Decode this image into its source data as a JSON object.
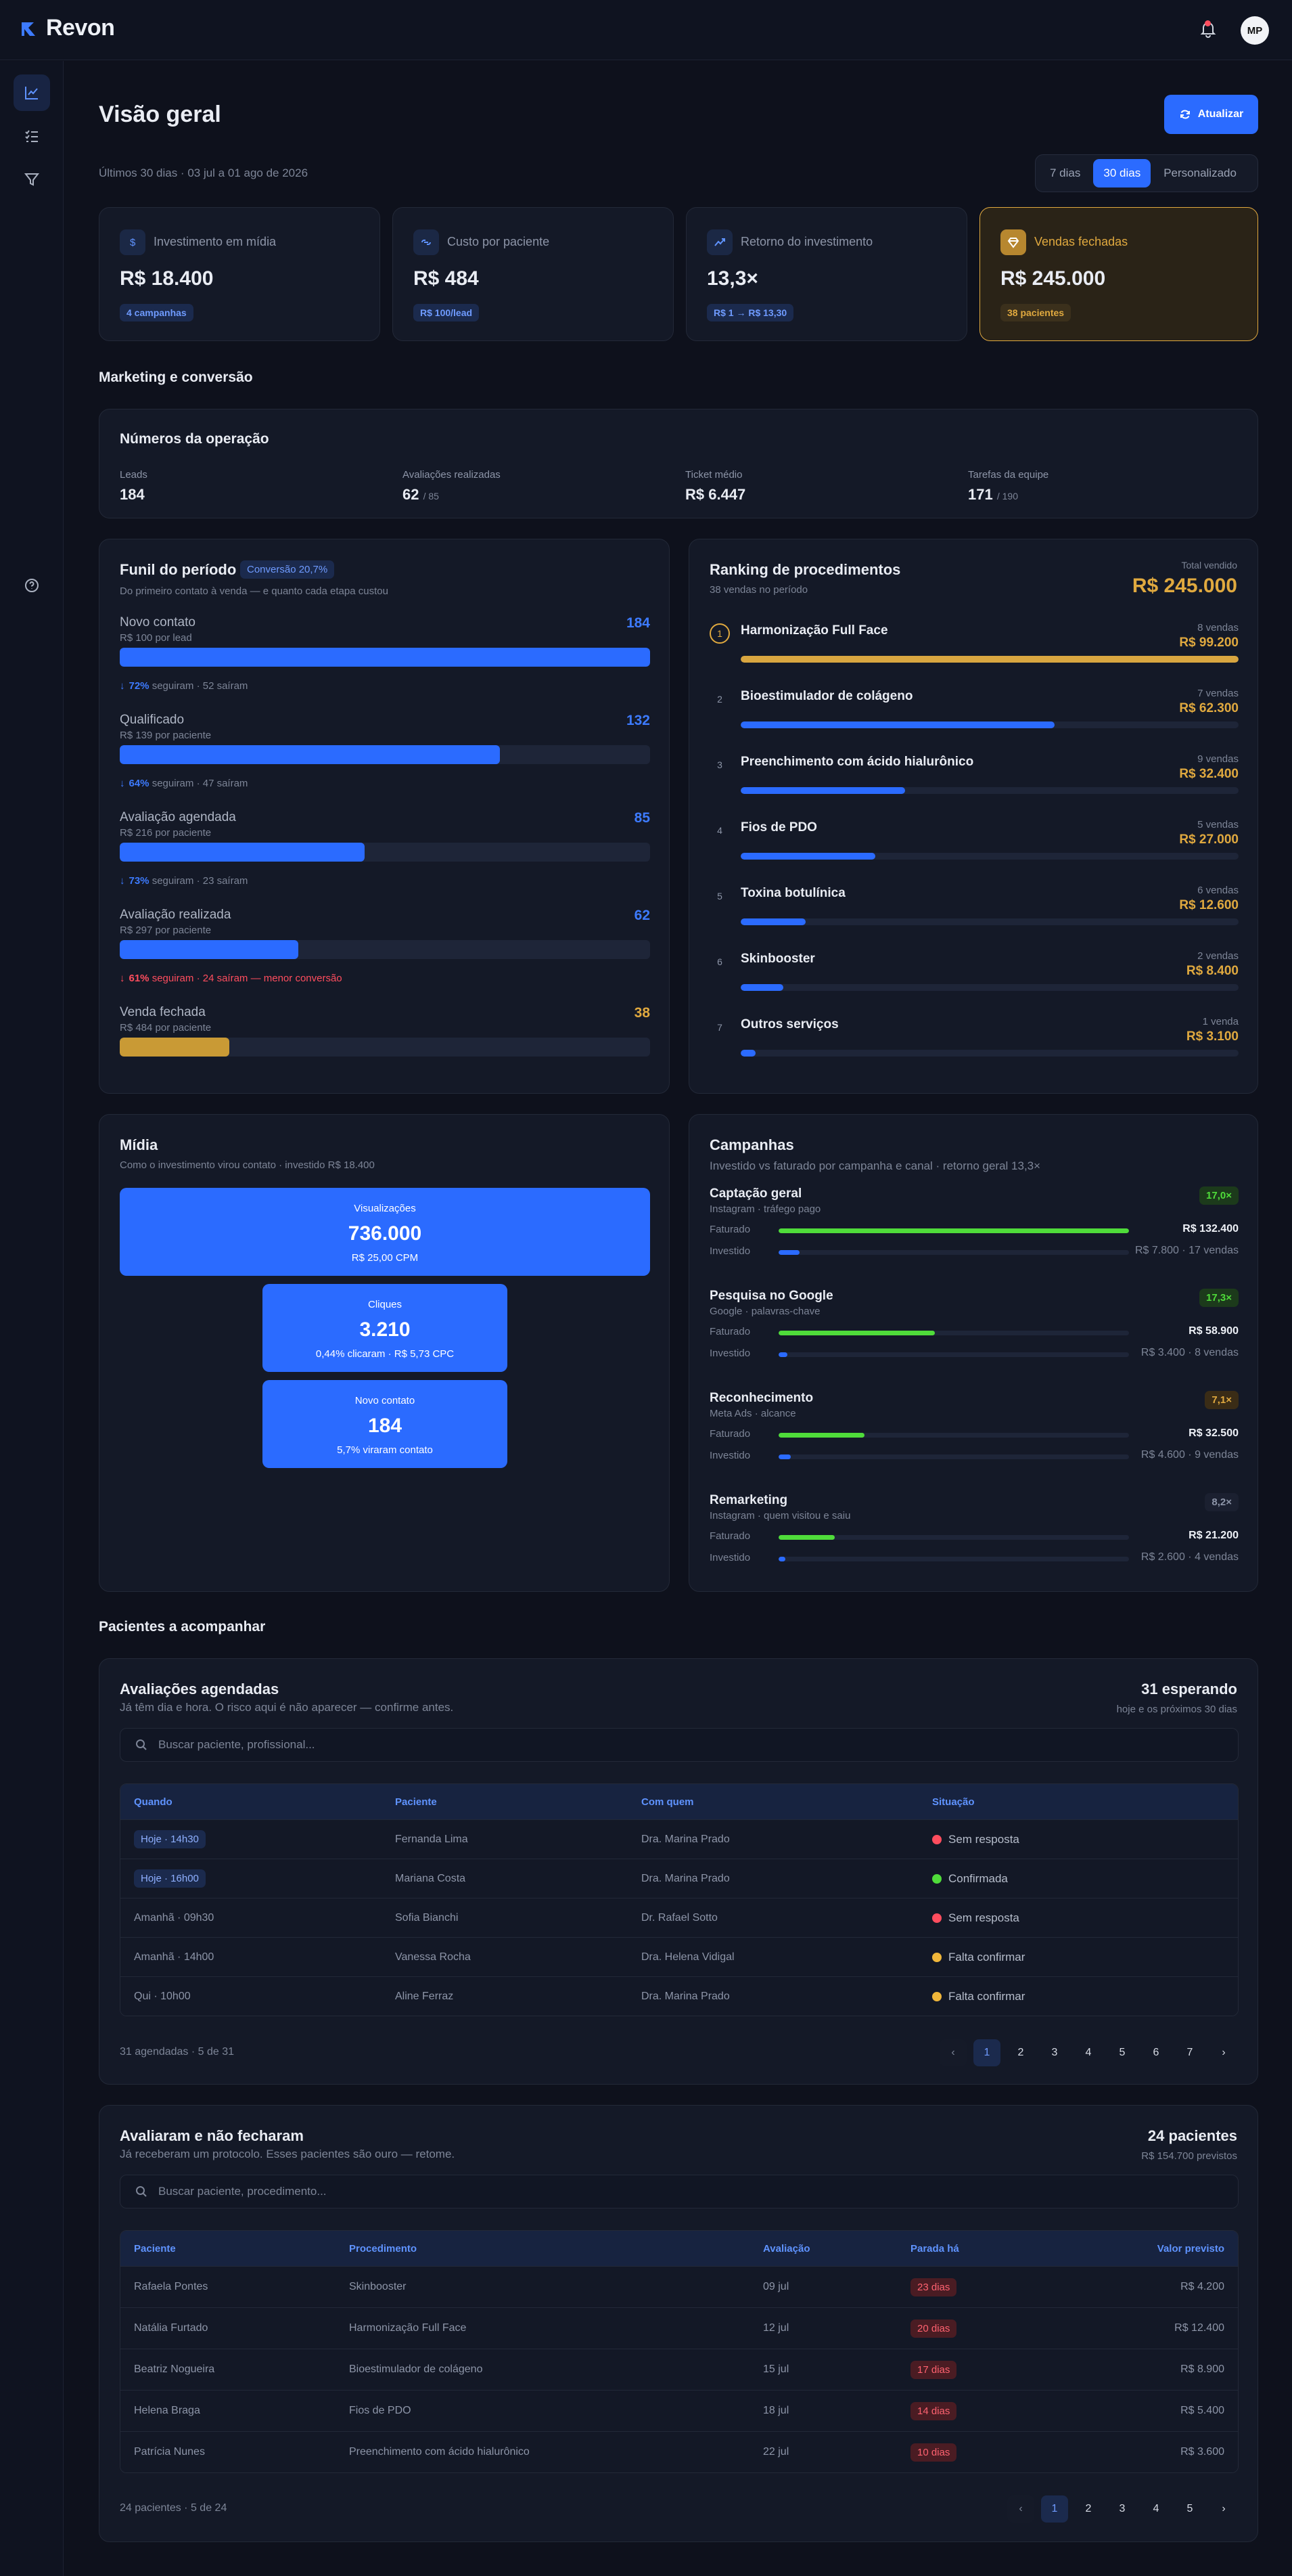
{
  "app": {
    "name": "Revon",
    "avatar": "MP"
  },
  "header": {
    "title": "Visão geral",
    "refresh_label": "Atualizar",
    "range_text": "Últimos 30 dias · 03 jul a 01 ago de 2026",
    "ranges": [
      "7 dias",
      "30 dias",
      "Personalizado"
    ]
  },
  "kpis": [
    {
      "label": "Investimento em mídia",
      "value": "R$ 18.400",
      "badge": "4 campanhas",
      "icon": "dollar-icon"
    },
    {
      "label": "Custo por paciente",
      "value": "R$ 484",
      "badge": "R$ 100/lead",
      "icon": "link-icon"
    },
    {
      "label": "Retorno do investimento",
      "value": "13,3×",
      "badge": "R$ 1 → R$ 13,30",
      "icon": "trend-icon"
    },
    {
      "label": "Vendas fechadas",
      "value": "R$ 245.000",
      "badge": "38 pacientes",
      "icon": "gem-icon"
    }
  ],
  "sections": {
    "marketing": "Marketing e conversão",
    "patients": "Pacientes a acompanhar"
  },
  "operation": {
    "title": "Números da operação",
    "items": [
      {
        "label": "Leads",
        "value": "184",
        "suffix": ""
      },
      {
        "label": "Avaliações realizadas",
        "value": "62",
        "suffix": "/ 85"
      },
      {
        "label": "Ticket médio",
        "value": "R$ 6.447",
        "suffix": ""
      },
      {
        "label": "Tarefas da equipe",
        "value": "171",
        "suffix": "/ 190"
      }
    ]
  },
  "funnel": {
    "title": "Funil do período",
    "badge": "Conversão 20,7%",
    "subtitle": "Do primeiro contato à venda — e quanto cada etapa custou",
    "stages": [
      {
        "name": "Novo contato",
        "cost": "R$ 100 por lead",
        "count": "184",
        "fill": 1.0
      },
      {
        "name": "Qualificado",
        "cost": "R$ 139 por paciente",
        "count": "132",
        "fill": 0.717
      },
      {
        "name": "Avaliação agendada",
        "cost": "R$ 216 por paciente",
        "count": "85",
        "fill": 0.462
      },
      {
        "name": "Avaliação realizada",
        "cost": "R$ 297 por paciente",
        "count": "62",
        "fill": 0.337
      },
      {
        "name": "Venda fechada",
        "cost": "R$ 484 por paciente",
        "count": "38",
        "fill": 0.207
      }
    ],
    "notes": [
      {
        "pct": "72%",
        "text": "seguiram · 52 saíram"
      },
      {
        "pct": "64%",
        "text": "seguiram · 47 saíram"
      },
      {
        "pct": "73%",
        "text": "seguiram · 23 saíram"
      },
      {
        "pct": "61%",
        "text": "seguiram · 24 saíram — menor conversão"
      }
    ]
  },
  "ranking": {
    "title": "Ranking de procedimentos",
    "subtitle": "38 vendas no período",
    "total_label": "Total vendido",
    "total": "R$ 245.000",
    "items": [
      {
        "rank": "1",
        "name": "Harmonização Full Face",
        "sales": "8 vendas",
        "amount": "R$ 99.200",
        "fill": 1.0
      },
      {
        "rank": "2",
        "name": "Bioestimulador de colágeno",
        "sales": "7 vendas",
        "amount": "R$ 62.300",
        "fill": 0.63
      },
      {
        "rank": "3",
        "name": "Preenchimento com ácido hialurônico",
        "sales": "9 vendas",
        "amount": "R$ 32.400",
        "fill": 0.33
      },
      {
        "rank": "4",
        "name": "Fios de PDO",
        "sales": "5 vendas",
        "amount": "R$ 27.000",
        "fill": 0.27
      },
      {
        "rank": "5",
        "name": "Toxina botulínica",
        "sales": "6 vendas",
        "amount": "R$ 12.600",
        "fill": 0.13
      },
      {
        "rank": "6",
        "name": "Skinbooster",
        "sales": "2 vendas",
        "amount": "R$ 8.400",
        "fill": 0.085
      },
      {
        "rank": "7",
        "name": "Outros serviços",
        "sales": "1 venda",
        "amount": "R$ 3.100",
        "fill": 0.03
      }
    ]
  },
  "media": {
    "title": "Mídia",
    "subtitle": "Como o investimento virou contato · investido R$ 18.400",
    "blocks": [
      {
        "label": "Visualizações",
        "value": "736.000",
        "detail": "R$ 25,00 CPM"
      },
      {
        "label": "Cliques",
        "value": "3.210",
        "detail": "0,44% clicaram · R$ 5,73 CPC"
      },
      {
        "label": "Novo contato",
        "value": "184",
        "detail": "5,7% viraram contato"
      }
    ]
  },
  "campaigns": {
    "title": "Campanhas",
    "subtitle": "Investido vs faturado por campanha e canal · retorno geral 13,3×",
    "row_labels": {
      "billed": "Faturado",
      "invested": "Investido"
    },
    "items": [
      {
        "name": "Captação geral",
        "source": "Instagram · tráfego pago",
        "roi": "17,0×",
        "billed": "R$ 132.400",
        "invested": "R$ 7.800 · 17 vendas",
        "billed_fill": 1.0,
        "invested_fill": 0.059,
        "roi_color": "#4fdc3a",
        "roi_bg": "#1c3a1b"
      },
      {
        "name": "Pesquisa no Google",
        "source": "Google · palavras-chave",
        "roi": "17,3×",
        "billed": "R$ 58.900",
        "invested": "R$ 3.400 · 8 vendas",
        "billed_fill": 0.445,
        "invested_fill": 0.026,
        "roi_color": "#4fdc3a",
        "roi_bg": "#1c3a1b"
      },
      {
        "name": "Reconhecimento",
        "source": "Meta Ads · alcance",
        "roi": "7,1×",
        "billed": "R$ 32.500",
        "invested": "R$ 4.600 · 9 vendas",
        "billed_fill": 0.245,
        "invested_fill": 0.035,
        "roi_color": "#e0a93f",
        "roi_bg": "#3a2c16"
      },
      {
        "name": "Remarketing",
        "source": "Instagram · quem visitou e saiu",
        "roi": "8,2×",
        "billed": "R$ 21.200",
        "invested": "R$ 2.600 · 4 vendas",
        "billed_fill": 0.16,
        "invested_fill": 0.02,
        "roi_color": "#8d95a8",
        "roi_bg": "#1b2030"
      }
    ]
  },
  "appointments": {
    "title": "Avaliações agendadas",
    "subtitle": "Já têm dia e hora. O risco aqui é não aparecer — confirme antes.",
    "count": "31 esperando",
    "count_sub": "hoje e os próximos 30 dias",
    "search_placeholder": "Buscar paciente, profissional...",
    "columns": [
      "Quando",
      "Paciente",
      "Com quem",
      "Situação"
    ],
    "rows": [
      {
        "when": "Hoje · 14h30",
        "patient": "Fernanda Lima",
        "with": "Dra. Marina Prado",
        "status": "Sem resposta",
        "color": "#ff4d5e",
        "highlight": true
      },
      {
        "when": "Hoje · 16h00",
        "patient": "Mariana Costa",
        "with": "Dra. Marina Prado",
        "status": "Confirmada",
        "color": "#4fdc3a",
        "highlight": true
      },
      {
        "when": "Amanhã · 09h30",
        "patient": "Sofia Bianchi",
        "with": "Dr. Rafael Sotto",
        "status": "Sem resposta",
        "color": "#ff4d5e",
        "highlight": false
      },
      {
        "when": "Amanhã · 14h00",
        "patient": "Vanessa Rocha",
        "with": "Dra. Helena Vidigal",
        "status": "Falta confirmar",
        "color": "#f0b63a",
        "highlight": false
      },
      {
        "when": "Qui · 10h00",
        "patient": "Aline Ferraz",
        "with": "Dra. Marina Prado",
        "status": "Falta confirmar",
        "color": "#f0b63a",
        "highlight": false
      }
    ],
    "footer": "31 agendadas · 5 de 31",
    "pages": [
      "1",
      "2",
      "3",
      "4",
      "5",
      "6",
      "7"
    ]
  },
  "not_closed": {
    "title": "Avaliaram e não fecharam",
    "subtitle": "Já receberam um protocolo. Esses pacientes são ouro — retome.",
    "count": "24 pacientes",
    "count_sub": "R$ 154.700 previstos",
    "search_placeholder": "Buscar paciente, procedimento...",
    "columns": [
      "Paciente",
      "Procedimento",
      "Avaliação",
      "Parada há",
      "Valor previsto"
    ],
    "rows": [
      {
        "patient": "Rafaela Pontes",
        "procedure": "Skinbooster",
        "date": "09 jul",
        "stopped": "23 dias",
        "value": "R$ 4.200"
      },
      {
        "patient": "Natália Furtado",
        "procedure": "Harmonização Full Face",
        "date": "12 jul",
        "stopped": "20 dias",
        "value": "R$ 12.400"
      },
      {
        "patient": "Beatriz Nogueira",
        "procedure": "Bioestimulador de colágeno",
        "date": "15 jul",
        "stopped": "17 dias",
        "value": "R$ 8.900"
      },
      {
        "patient": "Helena Braga",
        "procedure": "Fios de PDO",
        "date": "18 jul",
        "stopped": "14 dias",
        "value": "R$ 5.400"
      },
      {
        "patient": "Patrícia Nunes",
        "procedure": "Preenchimento com ácido hialurônico",
        "date": "22 jul",
        "stopped": "10 dias",
        "value": "R$ 3.600"
      }
    ],
    "footer": "24 pacientes · 5 de 24",
    "pages": [
      "1",
      "2",
      "3",
      "4",
      "5"
    ]
  }
}
